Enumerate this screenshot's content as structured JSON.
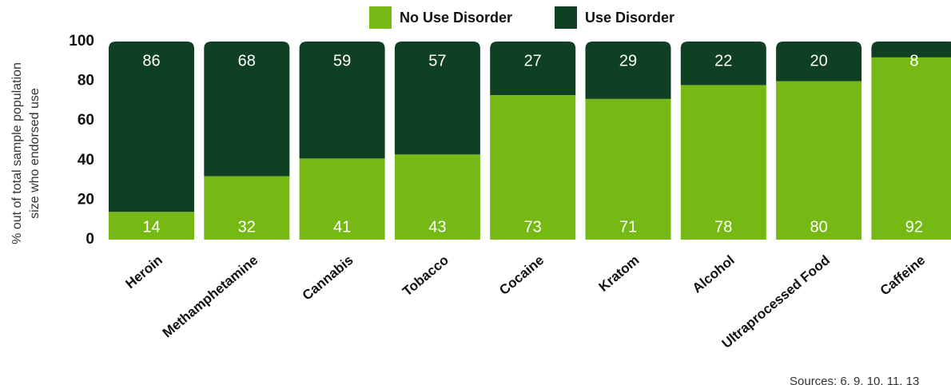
{
  "chart_data": {
    "type": "stacked_bar",
    "y_label": [
      "% out of total sample population",
      "size who endorsed use"
    ],
    "categories": [
      "Heroin",
      "Methamphetamine",
      "Cannabis",
      "Tobacco",
      "Cocaine",
      "Kratom",
      "Alcohol",
      "Ultraprocessed Food",
      "Caffeine"
    ],
    "series": [
      {
        "name": "No Use Disorder",
        "color": "#76b814",
        "values": [
          14,
          32,
          41,
          43,
          73,
          71,
          78,
          80,
          92
        ]
      },
      {
        "name": "Use Disorder",
        "color": "#0f4024",
        "values": [
          86,
          68,
          59,
          57,
          27,
          29,
          22,
          20,
          8
        ]
      }
    ],
    "ylim": [
      0,
      100
    ],
    "yticks": [
      0,
      20,
      40,
      60,
      80,
      100
    ],
    "legend": "top",
    "note": "Sources: 6, 9, 10, 11, 13"
  }
}
